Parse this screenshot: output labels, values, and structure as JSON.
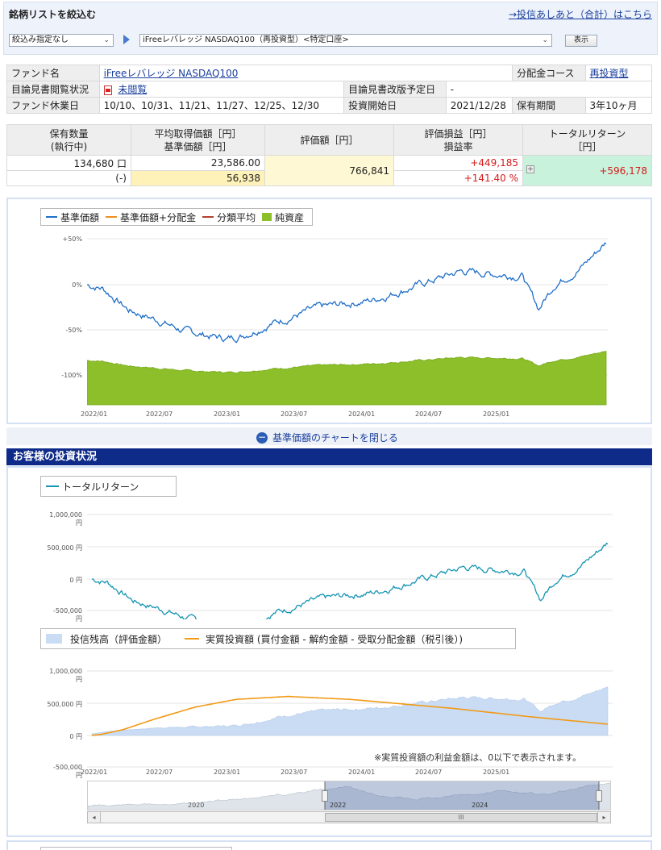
{
  "filter": {
    "title": "銘柄リストを絞込む",
    "link": "→投信あしあと（合計）はこちら",
    "select_filter": "絞込み指定なし",
    "select_fund": "iFreeレバレッジ NASDAQ100（再投資型）<特定口座>",
    "display_button": "表示"
  },
  "info": {
    "fund_name_label": "ファンド名",
    "fund_name": "iFreeレバレッジ NASDAQ100",
    "course_label": "分配金コース",
    "course": "再投資型",
    "prospectus_label": "目論見書閲覧状況",
    "prospectus_status": "未閲覧",
    "revision_label": "目論見書改版予定日",
    "revision": "-",
    "holiday_label": "ファンド休業日",
    "holidays": "10/10、10/31、11/21、11/27、12/25、12/30",
    "start_label": "投資開始日",
    "start": "2021/12/28",
    "period_label": "保有期間",
    "period": "3年10ヶ月"
  },
  "holdings": {
    "h_qty": "保有数量",
    "h_qty2": "(執行中)",
    "h_avg": "平均取得価額［円］",
    "h_nav": "基準価額［円］",
    "h_value": "評価額［円］",
    "h_pl": "評価損益［円］",
    "h_plrate": "損益率",
    "h_total": "トータルリターン",
    "h_total2": "［円］",
    "qty": "134,680 口",
    "pending": "(-)",
    "avg_cost": "23,586.00",
    "nav": "56,938",
    "value": "766,841",
    "pl": "+449,185",
    "pl_rate": "+141.40 %",
    "total_return": "+596,178"
  },
  "chart1": {
    "legend": [
      "基準価額",
      "基準価額+分配金",
      "分類平均",
      "純資産"
    ],
    "colors": [
      "#1f6fc9",
      "#f08c1e",
      "#b5402a",
      "#8cbf2a"
    ],
    "y_ticks": [
      "+50%",
      "0%",
      "-50%",
      "-100%"
    ],
    "x_ticks": [
      "2022/01",
      "2022/07",
      "2023/01",
      "2023/07",
      "2024/01",
      "2024/07",
      "2025/01"
    ],
    "close_label": "基準価額のチャートを閉じる"
  },
  "section_title": "お客様の投資状況",
  "chart2": {
    "legend": "トータルリターン",
    "color": "#1595b3",
    "y_ticks": [
      "1,000,000 円",
      "500,000 円",
      "0 円",
      "-500,000 円"
    ]
  },
  "chart3": {
    "legend_balance": "投信残高（評価金額）",
    "legend_invest": "実質投資額 (買付金額 - 解約金額 - 受取分配金額（税引後）)",
    "balance_color": "#c9dcf3",
    "invest_color": "#f29a16",
    "y_ticks": [
      "1,000,000 円",
      "500,000 円",
      "0 円",
      "-500,000 円"
    ],
    "note": "※実質投資額の利益金額は、0以下で表示されます。",
    "x_ticks": [
      "2022/01",
      "2022/07",
      "2023/01",
      "2023/07",
      "2024/01",
      "2024/07",
      "2025/01"
    ],
    "nav_labels": [
      "2020",
      "2022",
      "2024"
    ],
    "scroll_grip": "III"
  }
}
